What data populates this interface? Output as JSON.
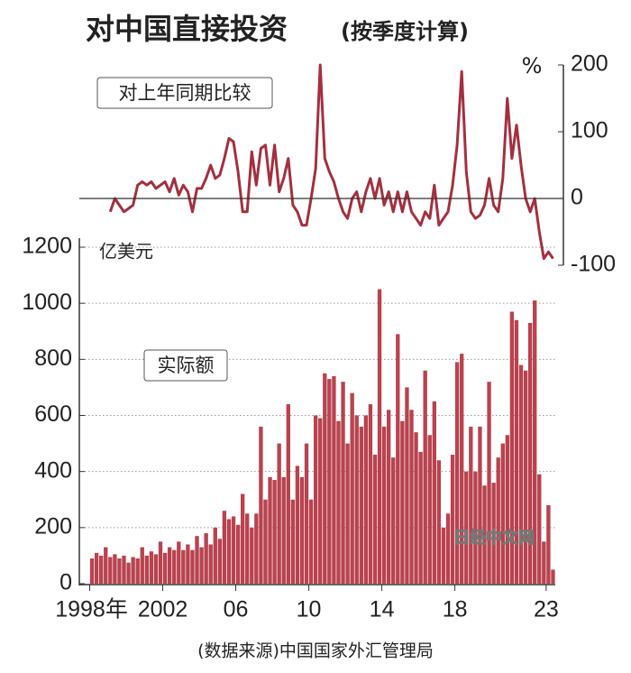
{
  "title": "对中国直接投资",
  "subtitle": "(按季度计算)",
  "source": "(数据来源)中国国家外汇管理局",
  "watermark": "日经中文网",
  "chart_data": [
    {
      "type": "line",
      "annotation": "对上年同期比较",
      "ylabel": "%",
      "color": "#a3303f",
      "x": [
        1998,
        1998.25,
        1998.5,
        1998.75,
        1999,
        1999.25,
        1999.5,
        1999.75,
        2000,
        2000.25,
        2000.5,
        2000.75,
        2001,
        2001.25,
        2001.5,
        2001.75,
        2002,
        2002.25,
        2002.5,
        2002.75,
        2003,
        2003.25,
        2003.5,
        2003.75,
        2004,
        2004.25,
        2004.5,
        2004.75,
        2005,
        2005.25,
        2005.5,
        2005.75,
        2006,
        2006.25,
        2006.5,
        2006.75,
        2007,
        2007.25,
        2007.5,
        2007.75,
        2008,
        2008.25,
        2008.5,
        2008.75,
        2009,
        2009.25,
        2009.5,
        2009.75,
        2010,
        2010.25,
        2010.5,
        2010.75,
        2011,
        2011.25,
        2011.5,
        2011.75,
        2012,
        2012.25,
        2012.5,
        2012.75,
        2013,
        2013.25,
        2013.5,
        2013.75,
        2014,
        2014.25,
        2014.5,
        2014.75,
        2015,
        2015.25,
        2015.5,
        2015.75,
        2016,
        2016.25,
        2016.5,
        2016.75,
        2017,
        2017.25,
        2017.5,
        2017.75,
        2018,
        2018.25,
        2018.5,
        2018.75,
        2019,
        2019.25,
        2019.5,
        2019.75,
        2020,
        2020.25,
        2020.5,
        2020.75,
        2021,
        2021.25,
        2021.5,
        2021.75,
        2022,
        2022.25,
        2022.5,
        2022.75,
        2023,
        2023.25
      ],
      "values": [
        null,
        null,
        null,
        null,
        -20,
        0,
        -10,
        -20,
        -15,
        -10,
        20,
        25,
        20,
        25,
        15,
        20,
        25,
        10,
        30,
        5,
        20,
        10,
        -20,
        15,
        15,
        30,
        50,
        30,
        35,
        60,
        90,
        85,
        40,
        -20,
        -20,
        70,
        20,
        75,
        80,
        20,
        80,
        10,
        30,
        60,
        -10,
        -20,
        -40,
        -40,
        0,
        45,
        200,
        60,
        40,
        25,
        0,
        -20,
        -30,
        0,
        10,
        -20,
        10,
        30,
        0,
        30,
        -10,
        10,
        -20,
        10,
        -20,
        10,
        -20,
        -30,
        -40,
        -20,
        -30,
        20,
        -40,
        -30,
        -20,
        20,
        80,
        190,
        40,
        -20,
        -30,
        -25,
        -10,
        30,
        -10,
        -20,
        30,
        150,
        60,
        110,
        50,
        0,
        -20,
        0,
        -50,
        -90,
        -80,
        -90
      ],
      "xlim": [
        1997.875,
        2023.5
      ],
      "ylim": [
        -100,
        200
      ],
      "yticks": [
        -100,
        0,
        100,
        200
      ]
    },
    {
      "type": "bar",
      "annotation": "实际额",
      "ylabel": "亿美元",
      "color": "#b8434f",
      "grid": true,
      "x": [
        1998,
        1998.25,
        1998.5,
        1998.75,
        1999,
        1999.25,
        1999.5,
        1999.75,
        2000,
        2000.25,
        2000.5,
        2000.75,
        2001,
        2001.25,
        2001.5,
        2001.75,
        2002,
        2002.25,
        2002.5,
        2002.75,
        2003,
        2003.25,
        2003.5,
        2003.75,
        2004,
        2004.25,
        2004.5,
        2004.75,
        2005,
        2005.25,
        2005.5,
        2005.75,
        2006,
        2006.25,
        2006.5,
        2006.75,
        2007,
        2007.25,
        2007.5,
        2007.75,
        2008,
        2008.25,
        2008.5,
        2008.75,
        2009,
        2009.25,
        2009.5,
        2009.75,
        2010,
        2010.25,
        2010.5,
        2010.75,
        2011,
        2011.25,
        2011.5,
        2011.75,
        2012,
        2012.25,
        2012.5,
        2012.75,
        2013,
        2013.25,
        2013.5,
        2013.75,
        2014,
        2014.25,
        2014.5,
        2014.75,
        2015,
        2015.25,
        2015.5,
        2015.75,
        2016,
        2016.25,
        2016.5,
        2016.75,
        2017,
        2017.25,
        2017.5,
        2017.75,
        2018,
        2018.25,
        2018.5,
        2018.75,
        2019,
        2019.25,
        2019.5,
        2019.75,
        2020,
        2020.25,
        2020.5,
        2020.75,
        2021,
        2021.25,
        2021.5,
        2021.75,
        2022,
        2022.25,
        2022.5,
        2022.75,
        2023,
        2023.25
      ],
      "values": [
        90,
        110,
        100,
        130,
        95,
        105,
        90,
        100,
        75,
        95,
        90,
        130,
        100,
        115,
        105,
        150,
        110,
        130,
        120,
        150,
        120,
        140,
        120,
        170,
        130,
        180,
        140,
        200,
        160,
        260,
        230,
        240,
        210,
        320,
        250,
        200,
        250,
        560,
        300,
        380,
        370,
        500,
        380,
        640,
        300,
        420,
        380,
        500,
        300,
        600,
        590,
        750,
        730,
        740,
        580,
        720,
        500,
        680,
        600,
        560,
        600,
        640,
        460,
        1050,
        560,
        620,
        450,
        890,
        580,
        700,
        620,
        540,
        470,
        760,
        530,
        650,
        440,
        200,
        250,
        460,
        790,
        820,
        400,
        560,
        400,
        560,
        350,
        720,
        360,
        450,
        500,
        530,
        970,
        940,
        780,
        760,
        930,
        1010,
        390,
        150,
        280,
        50
      ],
      "xlim": [
        1997.875,
        2023.5
      ],
      "ylim": [
        0,
        1200
      ],
      "yticks": [
        0,
        200,
        400,
        600,
        800,
        1000,
        1200
      ],
      "xticks": [
        {
          "value": 1998,
          "label": "1998年"
        },
        2002,
        {
          "value": 2006,
          "label": "06"
        },
        {
          "value": 2010,
          "label": "10"
        },
        {
          "value": 2014,
          "label": "14"
        },
        {
          "value": 2018,
          "label": "18"
        },
        {
          "value": 2023,
          "label": "23"
        }
      ]
    }
  ]
}
